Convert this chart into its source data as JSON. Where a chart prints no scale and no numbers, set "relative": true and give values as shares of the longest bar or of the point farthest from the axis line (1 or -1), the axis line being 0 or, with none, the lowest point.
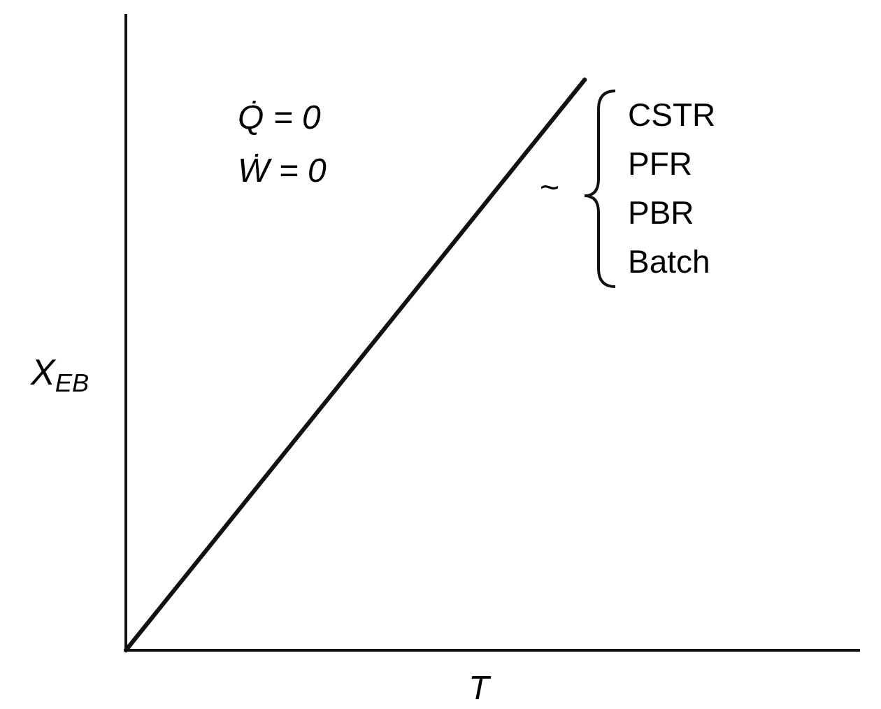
{
  "chart_data": {
    "type": "line",
    "relative": true,
    "categories": [
      null,
      null,
      null,
      null,
      null,
      null,
      null,
      null,
      null
    ],
    "values": [
      0,
      0.2,
      0.4,
      0.6,
      0.8,
      1,
      null,
      null,
      null
    ],
    "color": "#111111",
    "xlabel": "T",
    "ylabel": "X$_{EB}$",
    "annotations": [
      "Q̇ = 0",
      "Ẇ = 0",
      "~",
      "CSTR",
      "PFR",
      "PBR",
      "Batch"
    ]
  }
}
